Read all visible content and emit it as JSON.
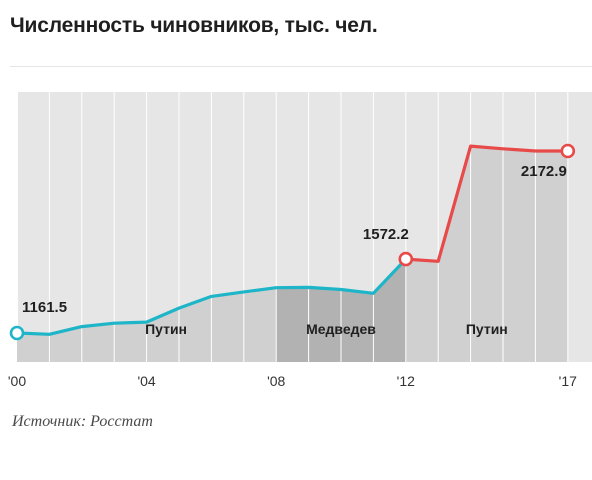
{
  "header": {
    "title": "Численность чиновников, тыс. чел."
  },
  "footer": {
    "source": "Источник: Росстат"
  },
  "colors": {
    "background": "#e6e6e6",
    "band_light": "#d0d0d0",
    "band_dark": "#b2b2b2",
    "teal_line": "#1fb5c8",
    "red_line": "#e84a4a",
    "grid": "#ffffff"
  },
  "chart_data": {
    "type": "line",
    "title": "Численность чиновников, тыс. чел.",
    "xlabel": "",
    "ylabel": "",
    "grid": true,
    "x_ticks": [
      "'00",
      "'04",
      "'08",
      "'12",
      "'17"
    ],
    "x": [
      2000,
      2001,
      2002,
      2003,
      2004,
      2005,
      2006,
      2007,
      2008,
      2009,
      2010,
      2011,
      2012,
      2013,
      2014,
      2015,
      2016,
      2017
    ],
    "series": [
      {
        "color": "#1fb5c8",
        "x": [
          2000,
          2001,
          2002,
          2003,
          2004,
          2005,
          2006,
          2007,
          2008,
          2009,
          2010,
          2011,
          2012
        ],
        "values": [
          1161.5,
          1154,
          1197,
          1216,
          1222,
          1300,
          1365,
          1390,
          1413,
          1415,
          1403,
          1382,
          1572.2
        ]
      },
      {
        "color": "#e84a4a",
        "x": [
          2012,
          2013,
          2014,
          2015,
          2016,
          2017
        ],
        "values": [
          1572.2,
          1560,
          2200,
          2185,
          2172.9,
          2172.9
        ]
      }
    ],
    "labeled_points": [
      {
        "x": 2000,
        "value": 1161.5,
        "label": "1161.5"
      },
      {
        "x": 2012,
        "value": 1572.2,
        "label": "1572.2"
      },
      {
        "x": 2017,
        "value": 2172.9,
        "label": "2172.9"
      }
    ],
    "periods": [
      {
        "label": "Путин",
        "start": 2000,
        "end": 2008,
        "shade": "light"
      },
      {
        "label": "Медведев",
        "start": 2008,
        "end": 2012,
        "shade": "dark"
      },
      {
        "label": "Путин",
        "start": 2012,
        "end": 2017,
        "shade": "light"
      }
    ]
  }
}
